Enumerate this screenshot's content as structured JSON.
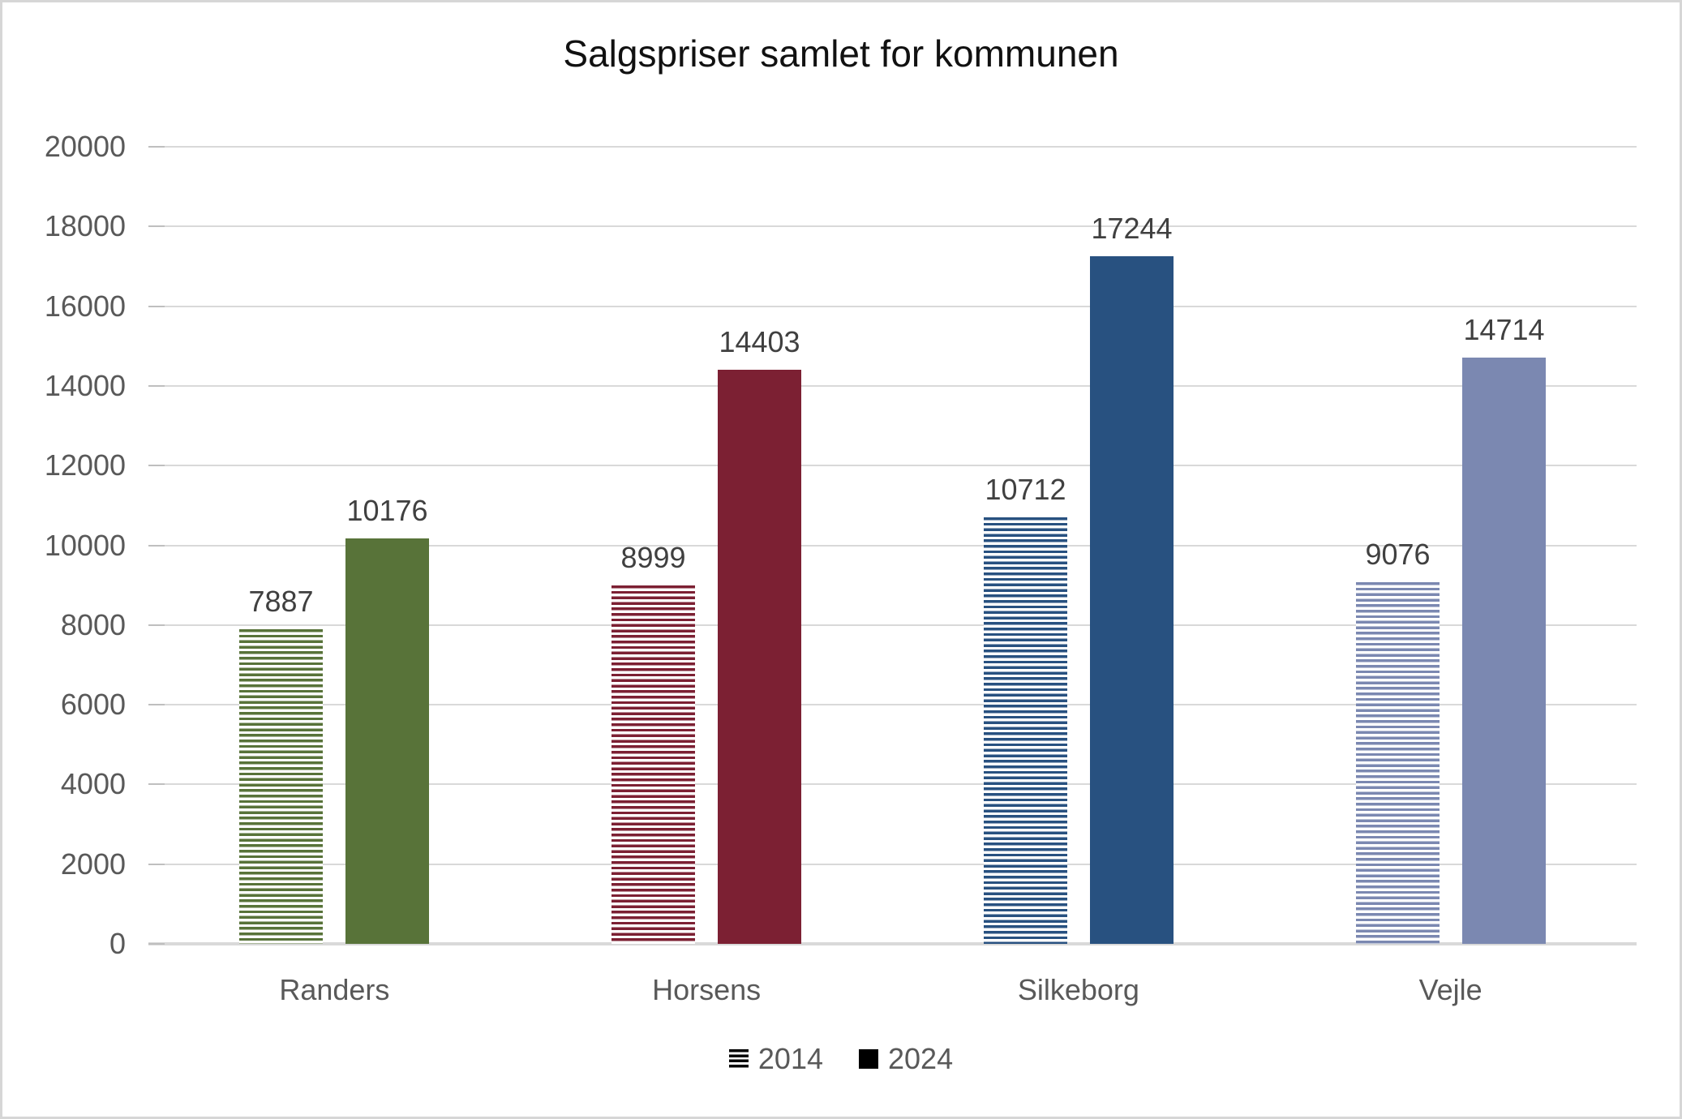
{
  "chart_data": {
    "type": "bar",
    "title": "Salgspriser samlet for kommunen",
    "categories": [
      "Randers",
      "Horsens",
      "Silkeborg",
      "Vejle"
    ],
    "series": [
      {
        "name": "2014",
        "style": "striped",
        "values": [
          7887,
          8999,
          10712,
          9076
        ]
      },
      {
        "name": "2024",
        "style": "solid",
        "values": [
          10176,
          14403,
          17244,
          14714
        ]
      }
    ],
    "category_colors": [
      "#587339",
      "#7C2033",
      "#285180",
      "#7B88B1"
    ],
    "ylim": [
      0,
      20000
    ],
    "ytick_step": 2000,
    "grid": "horizontal",
    "data_labels": true,
    "legend_position": "bottom",
    "colors": {
      "title_text": "#111111",
      "axis_text": "#595959",
      "data_label_text": "#404040",
      "gridline": "#D9D9D9",
      "tick": "#BFBFBF",
      "legend_marker": "#000000",
      "frame_border": "#D6D6D6",
      "background": "#FFFFFF"
    }
  }
}
